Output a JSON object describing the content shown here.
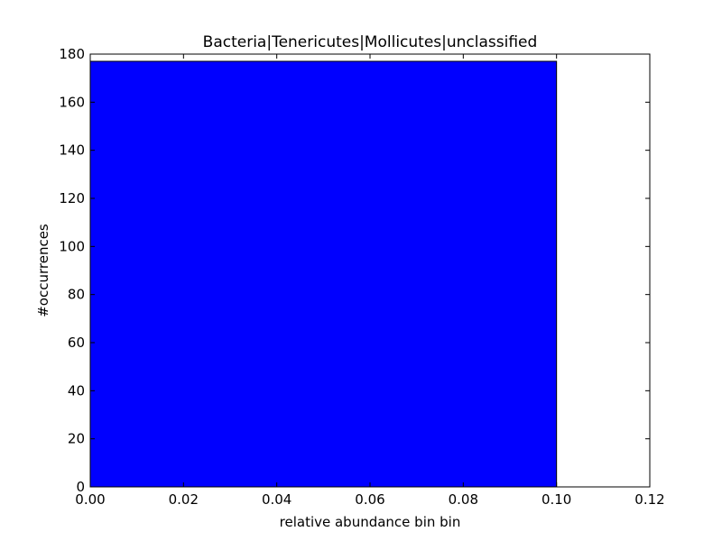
{
  "chart_data": {
    "type": "bar",
    "title": "Bacteria|Tenericutes|Mollicutes|unclassified",
    "xlabel": "relative abundance bin bin",
    "ylabel": "#occurrences",
    "xlim": [
      0.0,
      0.12
    ],
    "ylim": [
      0,
      180
    ],
    "x_ticks": [
      "0.00",
      "0.02",
      "0.04",
      "0.06",
      "0.08",
      "0.10",
      "0.12"
    ],
    "y_ticks": [
      "0",
      "20",
      "40",
      "60",
      "80",
      "100",
      "120",
      "140",
      "160",
      "180"
    ],
    "bins": [
      {
        "x_start": 0.0,
        "x_end": 0.1,
        "count": 177
      }
    ],
    "bar_color": "#0000ff",
    "grid": false,
    "legend": "none"
  }
}
